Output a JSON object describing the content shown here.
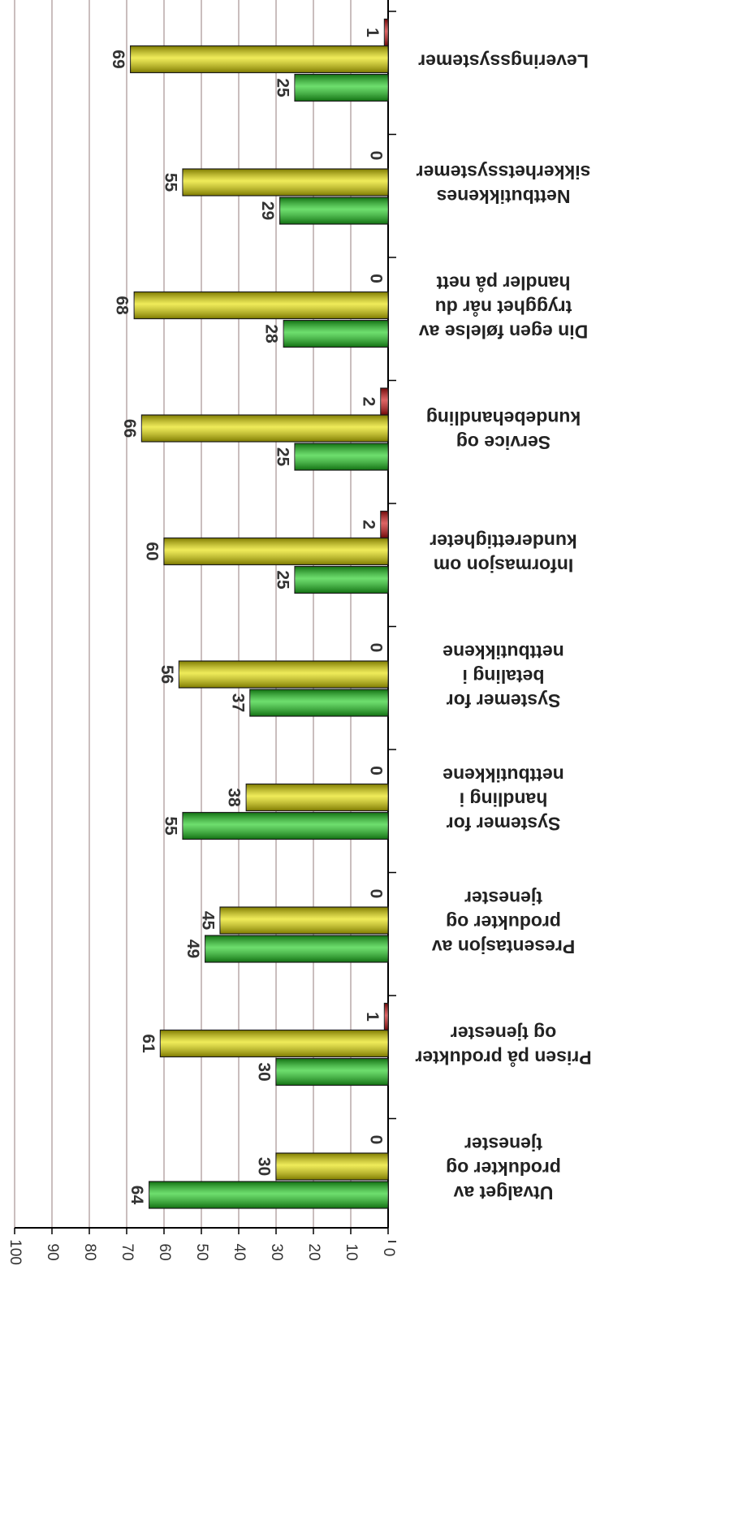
{
  "chart_data": {
    "type": "bar",
    "orientation": "horizontal-rotated",
    "categories": [
      [
        "Utvalget av",
        "produkter og",
        "tjenester"
      ],
      [
        "Prisen på produkter",
        "og tjenester"
      ],
      [
        "Presentasjon av",
        "produkter og",
        "tjenester"
      ],
      [
        "Systemer for",
        "handling i",
        "nettbutikkene"
      ],
      [
        "Systemer for",
        "betaling i",
        "nettbutikkene"
      ],
      [
        "Informasjon om",
        "kunderettigheter"
      ],
      [
        "Service og",
        "kundebehandling"
      ],
      [
        "Din egen følelse av",
        "trygghet når du",
        "handler på nett"
      ],
      [
        "Nettbutikkenes",
        "sikkerhetssystemer"
      ],
      [
        "Leveringssystemer"
      ]
    ],
    "series": [
      {
        "color": "#1fcc1f",
        "values": [
          64,
          30,
          49,
          55,
          37,
          25,
          25,
          28,
          29,
          25
        ]
      },
      {
        "color": "#e6e000",
        "values": [
          30,
          61,
          45,
          38,
          56,
          60,
          66,
          68,
          55,
          69
        ]
      },
      {
        "color": "#cc1010",
        "values": [
          0,
          1,
          0,
          0,
          0,
          2,
          2,
          0,
          0,
          1
        ]
      }
    ],
    "xlim": [
      0,
      100
    ],
    "xticks": [
      0,
      10,
      20,
      30,
      40,
      50,
      60,
      70,
      80,
      90,
      100
    ],
    "grid": true
  }
}
